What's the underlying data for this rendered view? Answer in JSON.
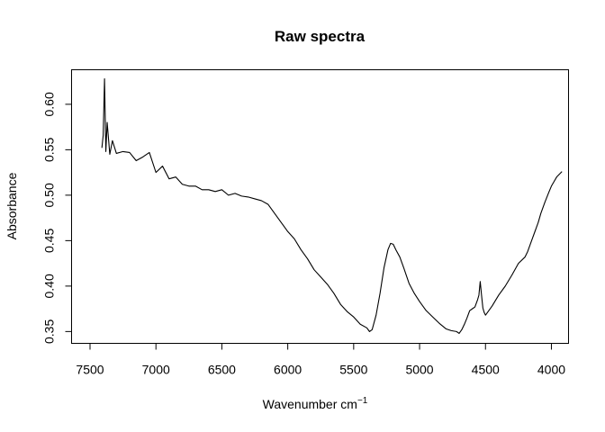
{
  "chart_data": {
    "type": "line",
    "title": "Raw spectra",
    "xlabel": "Wavenumber cm",
    "xlabel_superscript": "−1",
    "ylabel": "Absorbance",
    "xlim": [
      7640,
      3870
    ],
    "ylim": [
      0.337,
      0.638
    ],
    "x_reversed": true,
    "grid": false,
    "x_ticks": [
      7500,
      7000,
      6500,
      6000,
      5500,
      5000,
      4500,
      4000
    ],
    "x_tick_labels": [
      "7500",
      "7000",
      "6500",
      "6000",
      "5500",
      "5000",
      "4500",
      "4000"
    ],
    "y_ticks": [
      0.35,
      0.4,
      0.45,
      0.5,
      0.55,
      0.6
    ],
    "y_tick_labels": [
      "0.35",
      "0.40",
      "0.45",
      "0.50",
      "0.55",
      "0.60"
    ],
    "series": [
      {
        "color": "#000000",
        "x": [
          7410,
          7400,
          7390,
          7380,
          7370,
          7350,
          7330,
          7300,
          7250,
          7200,
          7150,
          7100,
          7050,
          7000,
          6950,
          6900,
          6850,
          6800,
          6750,
          6700,
          6650,
          6600,
          6550,
          6500,
          6450,
          6400,
          6350,
          6300,
          6250,
          6200,
          6150,
          6100,
          6050,
          6000,
          5950,
          5900,
          5850,
          5800,
          5750,
          5700,
          5650,
          5600,
          5550,
          5500,
          5450,
          5400,
          5380,
          5360,
          5330,
          5300,
          5270,
          5240,
          5220,
          5200,
          5180,
          5150,
          5120,
          5080,
          5040,
          5000,
          4950,
          4900,
          4850,
          4800,
          4760,
          4720,
          4700,
          4680,
          4660,
          4640,
          4620,
          4600,
          4580,
          4560,
          4550,
          4540,
          4530,
          4520,
          4510,
          4500,
          4480,
          4450,
          4400,
          4350,
          4300,
          4250,
          4200,
          4180,
          4150,
          4120,
          4100,
          4080,
          4050,
          4020,
          4000,
          3980,
          3960,
          3940,
          3920
        ],
        "y": [
          0.552,
          0.566,
          0.628,
          0.548,
          0.58,
          0.545,
          0.56,
          0.546,
          0.548,
          0.547,
          0.538,
          0.542,
          0.547,
          0.525,
          0.532,
          0.518,
          0.52,
          0.512,
          0.51,
          0.51,
          0.506,
          0.506,
          0.504,
          0.506,
          0.5,
          0.502,
          0.499,
          0.498,
          0.496,
          0.494,
          0.49,
          0.48,
          0.47,
          0.46,
          0.452,
          0.44,
          0.43,
          0.418,
          0.41,
          0.402,
          0.392,
          0.38,
          0.372,
          0.366,
          0.358,
          0.354,
          0.35,
          0.352,
          0.368,
          0.392,
          0.42,
          0.44,
          0.447,
          0.446,
          0.44,
          0.432,
          0.42,
          0.403,
          0.392,
          0.383,
          0.373,
          0.366,
          0.359,
          0.353,
          0.351,
          0.35,
          0.348,
          0.352,
          0.358,
          0.365,
          0.373,
          0.375,
          0.377,
          0.385,
          0.39,
          0.405,
          0.39,
          0.376,
          0.371,
          0.368,
          0.372,
          0.378,
          0.39,
          0.4,
          0.412,
          0.425,
          0.432,
          0.438,
          0.45,
          0.462,
          0.47,
          0.48,
          0.492,
          0.503,
          0.51,
          0.515,
          0.52,
          0.523,
          0.526
        ]
      }
    ]
  }
}
